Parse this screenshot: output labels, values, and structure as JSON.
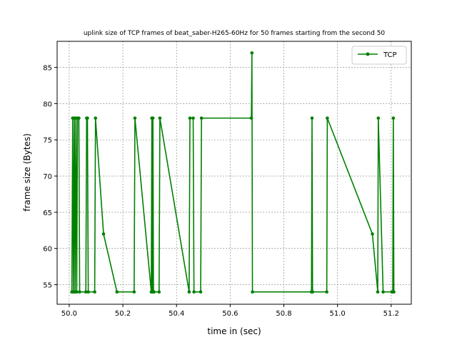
{
  "chart_data": {
    "type": "line",
    "title": "uplink size of TCP frames of beat_saber-H265-60Hz for 50 frames starting from the second 50",
    "xlabel": "time in (sec)",
    "ylabel": "frame size (Bytes)",
    "xlim": [
      49.955,
      51.275
    ],
    "ylim": [
      52.3,
      88.6
    ],
    "xticks": [
      "50.0",
      "50.2",
      "50.4",
      "50.6",
      "50.8",
      "51.0",
      "51.2"
    ],
    "yticks": [
      "55",
      "60",
      "65",
      "70",
      "75",
      "80",
      "85"
    ],
    "grid": true,
    "legend_position": "top-right",
    "color": "#008000",
    "series": [
      {
        "name": "TCP",
        "x": [
          50.01,
          50.013,
          50.016,
          50.019,
          50.022,
          50.025,
          50.028,
          50.031,
          50.036,
          50.039,
          50.062,
          50.065,
          50.068,
          50.071,
          50.095,
          50.098,
          50.128,
          50.178,
          50.242,
          50.245,
          50.306,
          50.308,
          50.31,
          50.312,
          50.314,
          50.316,
          50.335,
          50.338,
          50.447,
          50.45,
          50.462,
          50.465,
          50.49,
          50.493,
          50.679,
          50.681,
          50.683,
          50.903,
          50.905,
          50.907,
          50.96,
          50.962,
          51.13,
          51.15,
          51.152,
          51.17,
          51.203,
          51.206,
          51.208,
          51.21
        ],
        "y": [
          54,
          78,
          54,
          78,
          54,
          78,
          54,
          78,
          78,
          54,
          54,
          78,
          78,
          54,
          54,
          78,
          62,
          54,
          54,
          78,
          54,
          78,
          54,
          78,
          54,
          54,
          54,
          78,
          54,
          78,
          78,
          54,
          54,
          78,
          78,
          87,
          54,
          54,
          78,
          54,
          54,
          78,
          62,
          54,
          78,
          54,
          54,
          54,
          78,
          54
        ]
      }
    ]
  }
}
